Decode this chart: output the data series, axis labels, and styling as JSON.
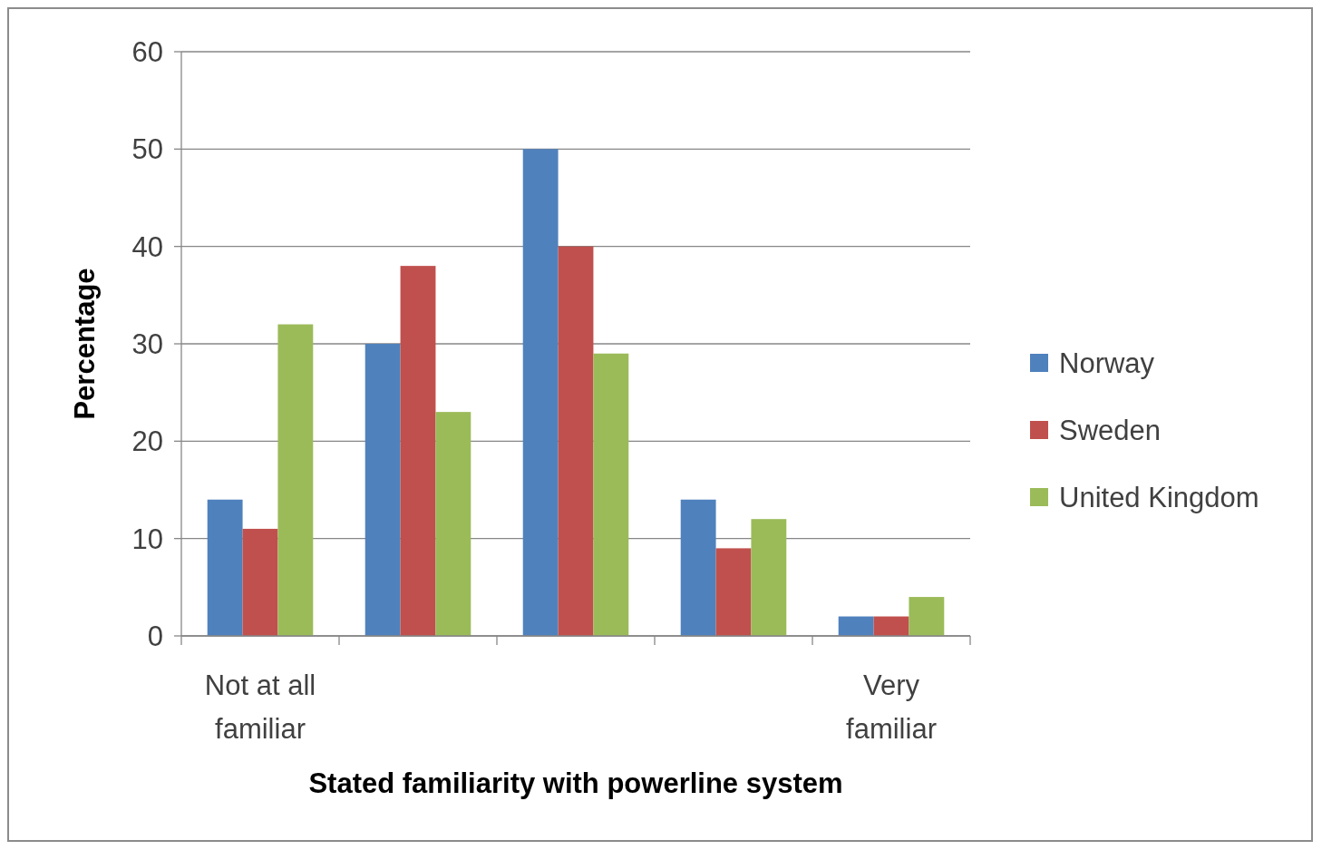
{
  "chart_data": {
    "type": "bar",
    "xlabel": "Stated familiarity with powerline system",
    "ylabel": "Percentage",
    "categories": [
      "Not at all familiar",
      null,
      null,
      null,
      "Very familiar"
    ],
    "series": [
      {
        "name": "Norway",
        "color": "#4f81bd",
        "values": [
          14,
          30,
          50,
          14,
          2
        ]
      },
      {
        "name": "Sweden",
        "color": "#c0504d",
        "values": [
          11,
          38,
          40,
          9,
          2
        ]
      },
      {
        "name": "United Kingdom",
        "color": "#9bbb59",
        "values": [
          32,
          23,
          29,
          12,
          4
        ]
      }
    ],
    "ylim": [
      0,
      60
    ],
    "yticks": [
      0,
      10,
      20,
      30,
      40,
      50,
      60
    ],
    "grid": "y",
    "legend": "right"
  }
}
